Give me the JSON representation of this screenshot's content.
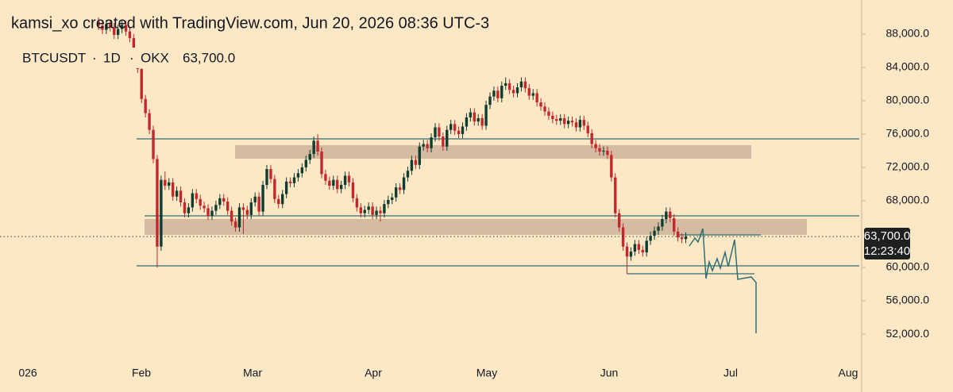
{
  "header": {
    "text": "kamsi_xo created with TradingView.com, Jun 20, 2026 08:36 UTC-3"
  },
  "chart_data": {
    "type": "candlestick",
    "symbol": "BTCUSDT",
    "interval": "1D",
    "exchange": "OKX",
    "last_price": "63,700.0",
    "countdown": "12:23:40",
    "up_color": "#0f3d30",
    "down_color": "#c3272b",
    "x_tick_labels": [
      "026",
      "Feb",
      "Mar",
      "Apr",
      "May",
      "Jun",
      "Jul",
      "Aug"
    ],
    "ylim": [
      48770,
      92080
    ],
    "yticks": [
      {
        "value": 88000,
        "label": "88,000.0"
      },
      {
        "value": 84000,
        "label": "84,000.0"
      },
      {
        "value": 80000,
        "label": "80,000.0"
      },
      {
        "value": 76000,
        "label": "76,000.0"
      },
      {
        "value": 72000,
        "label": "72,000.0"
      },
      {
        "value": 68000,
        "label": "68,000.0"
      },
      {
        "value": 60000,
        "label": "60,000.0"
      },
      {
        "value": 56000,
        "label": "56,000.0"
      },
      {
        "value": 52000,
        "label": "52,000.0"
      }
    ],
    "open": [
      89500,
      89000,
      88500,
      89200,
      88800,
      87900,
      88600,
      89100,
      88300,
      87500,
      84500,
      83800,
      80200,
      78500,
      76500,
      73000,
      62500,
      70500,
      69800,
      70200,
      68500,
      69200,
      67800,
      66500,
      67200,
      68900,
      68200,
      67400,
      67100,
      66200,
      66800,
      67500,
      68300,
      67900,
      66800,
      65500,
      64800,
      67200,
      66900,
      66300,
      67800,
      68500,
      66700,
      69900,
      71800,
      70600,
      68200,
      67600,
      68800,
      70300,
      70100,
      70800,
      71300,
      72000,
      72900,
      73600,
      75200,
      73900,
      71200,
      70400,
      69800,
      70500,
      69400,
      69900,
      71000,
      70200,
      68300,
      67200,
      66500,
      66900,
      67300,
      66300,
      66800,
      66500,
      67600,
      68100,
      68400,
      69600,
      69300,
      70800,
      71600,
      72900,
      72300,
      74500,
      74800,
      74300,
      75600,
      76800,
      75700,
      74500,
      76500,
      77200,
      76400,
      76000,
      76900,
      78000,
      78600,
      77500,
      77900,
      77000,
      79500,
      80500,
      81200,
      80300,
      81800,
      82100,
      81300,
      80900,
      81600,
      82300,
      81500,
      80600,
      80900,
      79800,
      79300,
      78700,
      78200,
      77800,
      77600,
      77900,
      77200,
      77600,
      77400,
      76800,
      77700,
      77000,
      76100,
      74800,
      74300,
      73900,
      74000,
      73500,
      70800,
      66500,
      64800,
      62500,
      61300,
      61900,
      62800,
      62100,
      61800,
      63200,
      63800,
      64400,
      64900,
      65800,
      66700,
      65900,
      64300,
      63600,
      63400
    ],
    "high": [
      90000,
      89500,
      89700,
      89700,
      89300,
      89100,
      89600,
      89600,
      88800,
      88000,
      85000,
      84300,
      80700,
      79000,
      77000,
      73500,
      71000,
      71500,
      70700,
      70700,
      69700,
      69700,
      68300,
      67700,
      69400,
      69400,
      68700,
      67900,
      67600,
      67300,
      68000,
      68800,
      68800,
      68400,
      67300,
      66000,
      67700,
      67700,
      67400,
      68300,
      69000,
      69000,
      70400,
      72300,
      72300,
      71100,
      68700,
      69300,
      70800,
      70800,
      71300,
      71800,
      72500,
      73400,
      74100,
      75700,
      76000,
      74400,
      71700,
      70900,
      71000,
      71000,
      70400,
      71500,
      71500,
      70700,
      68800,
      67700,
      67400,
      67800,
      67800,
      67300,
      67300,
      68100,
      68600,
      68900,
      70100,
      70100,
      71300,
      72100,
      73400,
      73400,
      75000,
      75300,
      75300,
      76100,
      77300,
      77300,
      76200,
      77000,
      77700,
      77700,
      76900,
      77400,
      78500,
      79100,
      79100,
      78400,
      78400,
      80000,
      81000,
      81700,
      81700,
      82300,
      82800,
      82600,
      81800,
      82100,
      82800,
      82800,
      82000,
      81400,
      81400,
      80300,
      79800,
      79200,
      78700,
      78300,
      78400,
      78400,
      78100,
      78100,
      77900,
      78200,
      78200,
      77500,
      76600,
      75300,
      74800,
      74500,
      74500,
      74000,
      71300,
      67000,
      65300,
      63000,
      62400,
      63300,
      63300,
      62600,
      63700,
      64300,
      64900,
      65400,
      66300,
      67200,
      67200,
      66400,
      64800,
      64100,
      64200
    ],
    "low": [
      88500,
      88000,
      88000,
      88300,
      87400,
      87400,
      88100,
      87800,
      87000,
      84000,
      83300,
      79700,
      78000,
      76000,
      72500,
      60000,
      62000,
      69300,
      69300,
      68000,
      68000,
      67300,
      66000,
      66000,
      66700,
      67700,
      66900,
      66600,
      65700,
      65700,
      66300,
      67000,
      67400,
      66300,
      65000,
      64300,
      64300,
      64000,
      65800,
      65800,
      67300,
      66200,
      66200,
      69400,
      70100,
      67700,
      67100,
      67100,
      68300,
      69600,
      69600,
      70300,
      70800,
      71500,
      72400,
      73100,
      73400,
      70700,
      69900,
      69300,
      69300,
      68900,
      68900,
      69400,
      69700,
      67800,
      66700,
      66000,
      66000,
      66400,
      65800,
      65800,
      65500,
      66000,
      67100,
      67600,
      67900,
      68800,
      68800,
      70300,
      71100,
      71800,
      71800,
      74000,
      73800,
      73800,
      75100,
      75200,
      74000,
      74000,
      76000,
      75900,
      75500,
      75500,
      76400,
      77500,
      77000,
      77000,
      76500,
      76500,
      79000,
      80000,
      79800,
      79800,
      81300,
      80800,
      80400,
      80400,
      81100,
      81000,
      80100,
      80100,
      79300,
      78800,
      78200,
      77700,
      77300,
      77100,
      77100,
      76700,
      76700,
      76900,
      76300,
      76300,
      76500,
      75600,
      74300,
      73800,
      73400,
      73400,
      73000,
      70300,
      66000,
      64300,
      62000,
      59200,
      60800,
      61400,
      61600,
      61300,
      61300,
      62700,
      63300,
      63900,
      64400,
      65300,
      65400,
      63800,
      63100,
      62900,
      62900
    ],
    "close": [
      89000,
      88500,
      89200,
      88800,
      87900,
      88600,
      89100,
      88300,
      87500,
      84500,
      83800,
      80200,
      78500,
      76500,
      73000,
      62500,
      70500,
      69800,
      70200,
      68500,
      69200,
      67800,
      66500,
      67200,
      68900,
      68200,
      67400,
      67100,
      66200,
      66800,
      67500,
      68300,
      67900,
      66800,
      65500,
      64800,
      67200,
      66900,
      66300,
      67800,
      68500,
      66700,
      69900,
      71800,
      70600,
      68200,
      67600,
      68800,
      70300,
      70100,
      70800,
      71300,
      72000,
      72900,
      73600,
      75200,
      73900,
      71200,
      70400,
      69800,
      70500,
      69400,
      69900,
      71000,
      70200,
      68300,
      67200,
      66500,
      66900,
      67300,
      66300,
      66800,
      66500,
      67600,
      68100,
      68400,
      69600,
      69300,
      70800,
      71600,
      72900,
      72300,
      74500,
      74800,
      74300,
      75600,
      76800,
      75700,
      74500,
      76500,
      77200,
      76400,
      76000,
      76900,
      78000,
      78600,
      77500,
      77900,
      77000,
      79500,
      80500,
      81200,
      80300,
      81800,
      82100,
      81300,
      80900,
      81600,
      82300,
      81500,
      80600,
      80900,
      79800,
      79300,
      78700,
      78200,
      77800,
      77600,
      77900,
      77200,
      77600,
      77400,
      76800,
      77700,
      77000,
      76100,
      74800,
      74300,
      73900,
      74000,
      73500,
      70800,
      66500,
      64800,
      62500,
      61300,
      61900,
      62800,
      62100,
      61800,
      63200,
      63800,
      64400,
      64900,
      65800,
      66700,
      65900,
      64300,
      63600,
      63400,
      63700
    ]
  }
}
